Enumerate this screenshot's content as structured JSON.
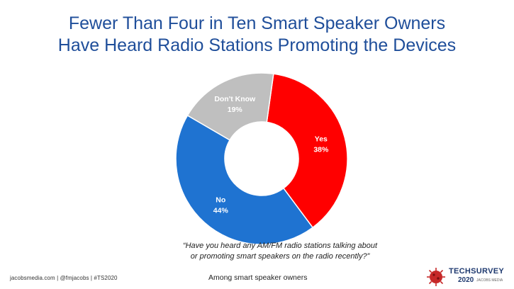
{
  "title_line1": "Fewer Than Four in Ten Smart Speaker Owners",
  "title_line2": "Have Heard Radio Stations Promoting the Devices",
  "question_line1": "“Have you heard any AM/FM radio stations talking about",
  "question_line2": "or promoting smart speakers on the radio recently?”",
  "footer_left": "jacobsmedia.com  |  @fmjacobs  |  #TS2020",
  "footer_center": "Among smart speaker owners",
  "logo": {
    "brand": "TECHSURVEY",
    "year": "2020",
    "sub": "JACOBS MEDIA",
    "icon": "coronavirus-icon"
  },
  "chart_data": {
    "type": "pie",
    "donut": true,
    "title": "Fewer Than Four in Ten Smart Speaker Owners Have Heard Radio Stations Promoting the Devices",
    "slices": [
      {
        "label": "Yes",
        "value": 38,
        "display": "38%",
        "color": "#FF0000"
      },
      {
        "label": "No",
        "value": 44,
        "display": "44%",
        "color": "#1F73D1"
      },
      {
        "label": "Don't Know",
        "value": 19,
        "display": "19%",
        "color": "#BFBFBF"
      }
    ],
    "legend": "none"
  }
}
